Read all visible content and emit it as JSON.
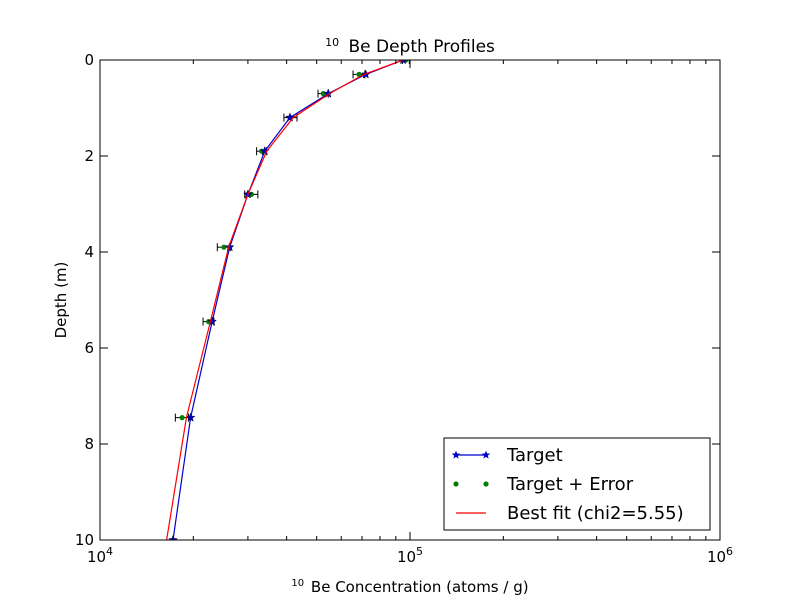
{
  "chart_data": {
    "type": "line",
    "title": {
      "sup": "10",
      "main": "Be Depth Profiles"
    },
    "xlabel": {
      "sup": "10",
      "main": "Be Concentration (atoms / g)"
    },
    "ylabel": "Depth (m)",
    "xscale": "log",
    "xlim": [
      10000,
      1000000
    ],
    "ylim": [
      10,
      0
    ],
    "y_inverted": true,
    "x_ticks": [
      {
        "value": 10000,
        "base": "10",
        "exp": "4"
      },
      {
        "value": 100000,
        "base": "10",
        "exp": "5"
      },
      {
        "value": 1000000,
        "base": "10",
        "exp": "6"
      }
    ],
    "y_ticks": [
      {
        "value": 0,
        "label": "0"
      },
      {
        "value": 2,
        "label": "2"
      },
      {
        "value": 4,
        "label": "4"
      },
      {
        "value": 6,
        "label": "6"
      },
      {
        "value": 8,
        "label": "8"
      },
      {
        "value": 10,
        "label": "10"
      }
    ],
    "grid": false,
    "legend_position": "lower-right",
    "series": [
      {
        "name": "Target",
        "style": "line-star",
        "color": "#0000cc",
        "x": [
          95000,
          72000,
          54500,
          41000,
          34000,
          30000,
          26200,
          23000,
          19600,
          17200
        ],
        "y": [
          0,
          0.3,
          0.7,
          1.2,
          1.9,
          2.8,
          3.9,
          5.45,
          7.45,
          10
        ]
      },
      {
        "name": "Target + Error",
        "style": "points",
        "color": "#007f00",
        "x": [
          97000,
          68500,
          52500,
          41200,
          33200,
          30800,
          25100,
          22400,
          18400
        ],
        "y": [
          0,
          0.3,
          0.7,
          1.2,
          1.9,
          2.8,
          3.9,
          5.45,
          7.45
        ],
        "xerr": [
          2500,
          3000,
          2000,
          2000,
          1200,
          1500,
          1200,
          900,
          900
        ]
      },
      {
        "name": "Best fit (chi2=5.55)",
        "style": "line",
        "color": "#ff0000",
        "x": [
          95000,
          71000,
          55000,
          42000,
          34500,
          30000,
          26000,
          22700,
          19000,
          16400
        ],
        "y": [
          0,
          0.3,
          0.7,
          1.2,
          1.9,
          2.8,
          3.9,
          5.45,
          7.45,
          10
        ]
      }
    ]
  }
}
